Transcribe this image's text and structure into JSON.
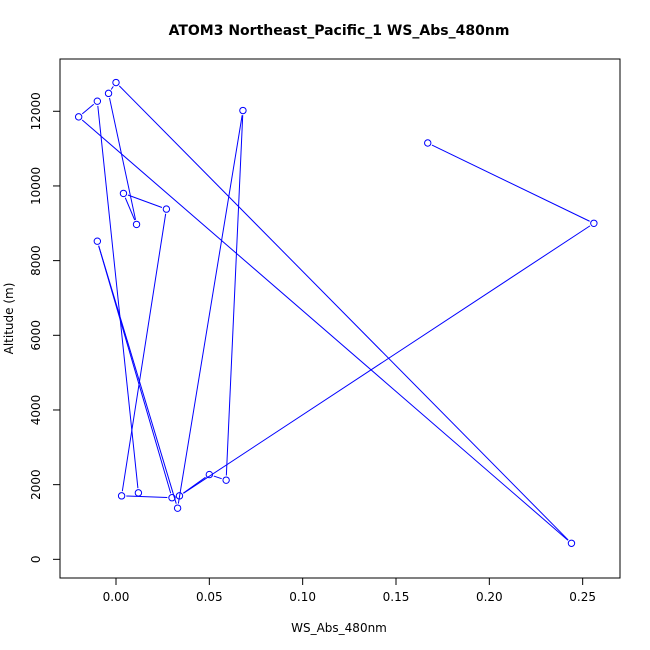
{
  "chart_data": {
    "type": "line",
    "title": "ATOM3 Northeast_Pacific_1 WS_Abs_480nm",
    "xlabel": "WS_Abs_480nm",
    "ylabel": "Altitude (m)",
    "xlim": [
      -0.03,
      0.27
    ],
    "ylim": [
      -500,
      13400
    ],
    "x_ticks": [
      0.0,
      0.05,
      0.1,
      0.15,
      0.2,
      0.25
    ],
    "x_tick_labels": [
      "0.00",
      "0.05",
      "0.10",
      "0.15",
      "0.20",
      "0.25"
    ],
    "y_ticks": [
      0,
      2000,
      4000,
      6000,
      8000,
      10000,
      12000
    ],
    "y_tick_labels": [
      "0",
      "2000",
      "4000",
      "6000",
      "8000",
      "10000",
      "12000"
    ],
    "grid": false,
    "legend": "none",
    "series_color": "#0000ff",
    "points": [
      {
        "x": 0.167,
        "y": 11150
      },
      {
        "x": 0.256,
        "y": 9000
      },
      {
        "x": 0.034,
        "y": 1700
      },
      {
        "x": 0.05,
        "y": 2270
      },
      {
        "x": 0.059,
        "y": 2120
      },
      {
        "x": 0.068,
        "y": 12020
      },
      {
        "x": 0.033,
        "y": 1370
      },
      {
        "x": -0.01,
        "y": 8520
      },
      {
        "x": 0.03,
        "y": 1650
      },
      {
        "x": 0.003,
        "y": 1700
      },
      {
        "x": 0.027,
        "y": 9380
      },
      {
        "x": 0.004,
        "y": 9800
      },
      {
        "x": 0.011,
        "y": 8970
      },
      {
        "x": -0.004,
        "y": 12480
      },
      {
        "x": 0.0,
        "y": 12770
      },
      {
        "x": 0.244,
        "y": 430
      },
      {
        "x": -0.02,
        "y": 11850
      },
      {
        "x": -0.01,
        "y": 12270
      },
      {
        "x": 0.012,
        "y": 1780
      }
    ]
  }
}
